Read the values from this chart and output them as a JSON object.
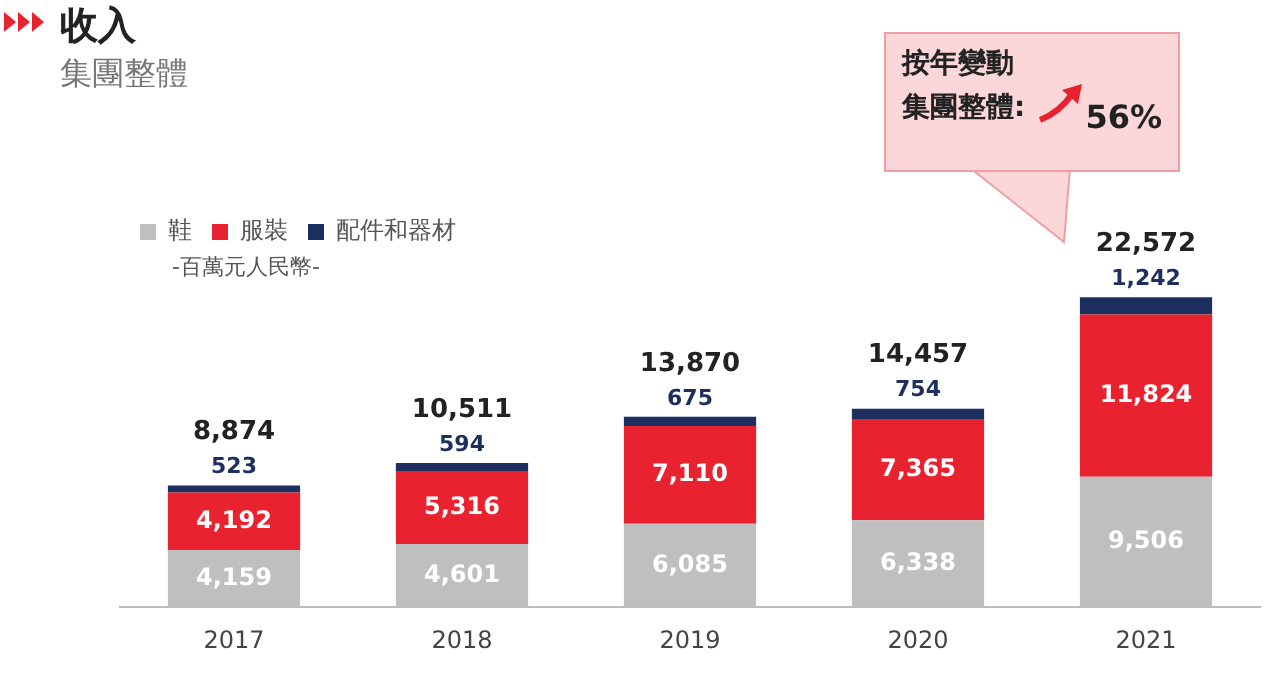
{
  "chart_data": {
    "type": "bar",
    "title": "收入",
    "subtitle": "集團整體",
    "stacked": true,
    "legend": "top left",
    "grid": false,
    "tick_labels": "x",
    "categories": [
      "2017",
      "2018",
      "2019",
      "2020",
      "2021"
    ],
    "series": [
      {
        "name": "鞋",
        "color": "#bfbfbf",
        "values": [
          4159,
          4601,
          6085,
          6338,
          9506
        ],
        "value_labels": [
          "4,159",
          "4,601",
          "6,085",
          "6,338",
          "9,506"
        ]
      },
      {
        "name": "服裝",
        "color": "#e8232f",
        "values": [
          4192,
          5316,
          7110,
          7365,
          11824
        ],
        "value_labels": [
          "4,192",
          "5,316",
          "7,110",
          "7,365",
          "11,824"
        ]
      },
      {
        "name": "配件和器材",
        "color": "#1c2f5e",
        "values": [
          523,
          594,
          675,
          754,
          1242
        ],
        "value_labels": [
          "523",
          "594",
          "675",
          "754",
          "1,242"
        ]
      }
    ],
    "totals": [
      "8,874",
      "10,511",
      "13,870",
      "14,457",
      "22,572"
    ],
    "annotations": [
      "-百萬元人民幣-",
      "按年變動",
      "集團整體:",
      "56%"
    ]
  }
}
